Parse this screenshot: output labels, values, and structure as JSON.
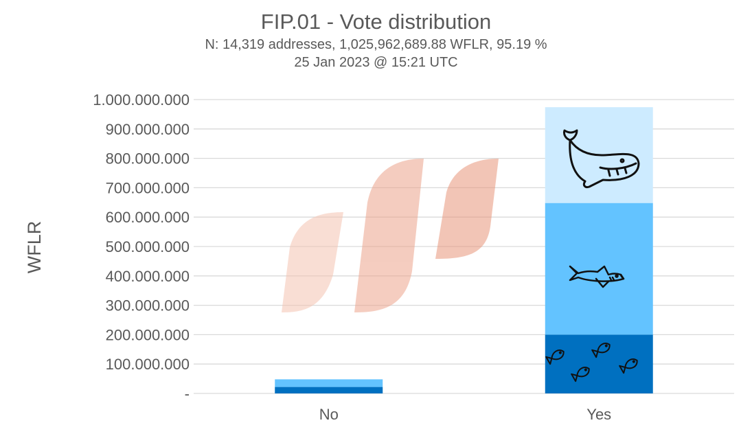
{
  "chart_data": {
    "type": "bar",
    "stacked": true,
    "title": "FIP.01 - Vote distribution",
    "subtitle": "N: 14,319 addresses, 1,025,962,689.88 WFLR, 95.19 %",
    "subtitle2": "25 Jan 2023 @ 15:21 UTC",
    "xlabel": "",
    "ylabel": "WFLR",
    "categories": [
      "No",
      "Yes"
    ],
    "ylim": [
      0,
      1000000000
    ],
    "yticks": [
      {
        "value": 0,
        "label": "-"
      },
      {
        "value": 100000000,
        "label": "100.000.000"
      },
      {
        "value": 200000000,
        "label": "200.000.000"
      },
      {
        "value": 300000000,
        "label": "300.000.000"
      },
      {
        "value": 400000000,
        "label": "400.000.000"
      },
      {
        "value": 500000000,
        "label": "500.000.000"
      },
      {
        "value": 600000000,
        "label": "600.000.000"
      },
      {
        "value": 700000000,
        "label": "700.000.000"
      },
      {
        "value": 800000000,
        "label": "800.000.000"
      },
      {
        "value": 900000000,
        "label": "900.000.000"
      },
      {
        "value": 1000000000,
        "label": "1.000.000.000"
      }
    ],
    "series": [
      {
        "icon": "fish-icon",
        "color": "#0070C0",
        "values": [
          22000000,
          200000000
        ]
      },
      {
        "icon": "shark-icon",
        "color": "#63C3FF",
        "values": [
          26000000,
          448000000
        ]
      },
      {
        "icon": "whale-icon",
        "color": "#CDEBFF",
        "values": [
          0,
          326000000
        ]
      }
    ],
    "grid": true,
    "legend": "none",
    "colors": {
      "gridline": "#D9D9D9",
      "text": "#595959",
      "watermark": "#E8957A"
    }
  }
}
